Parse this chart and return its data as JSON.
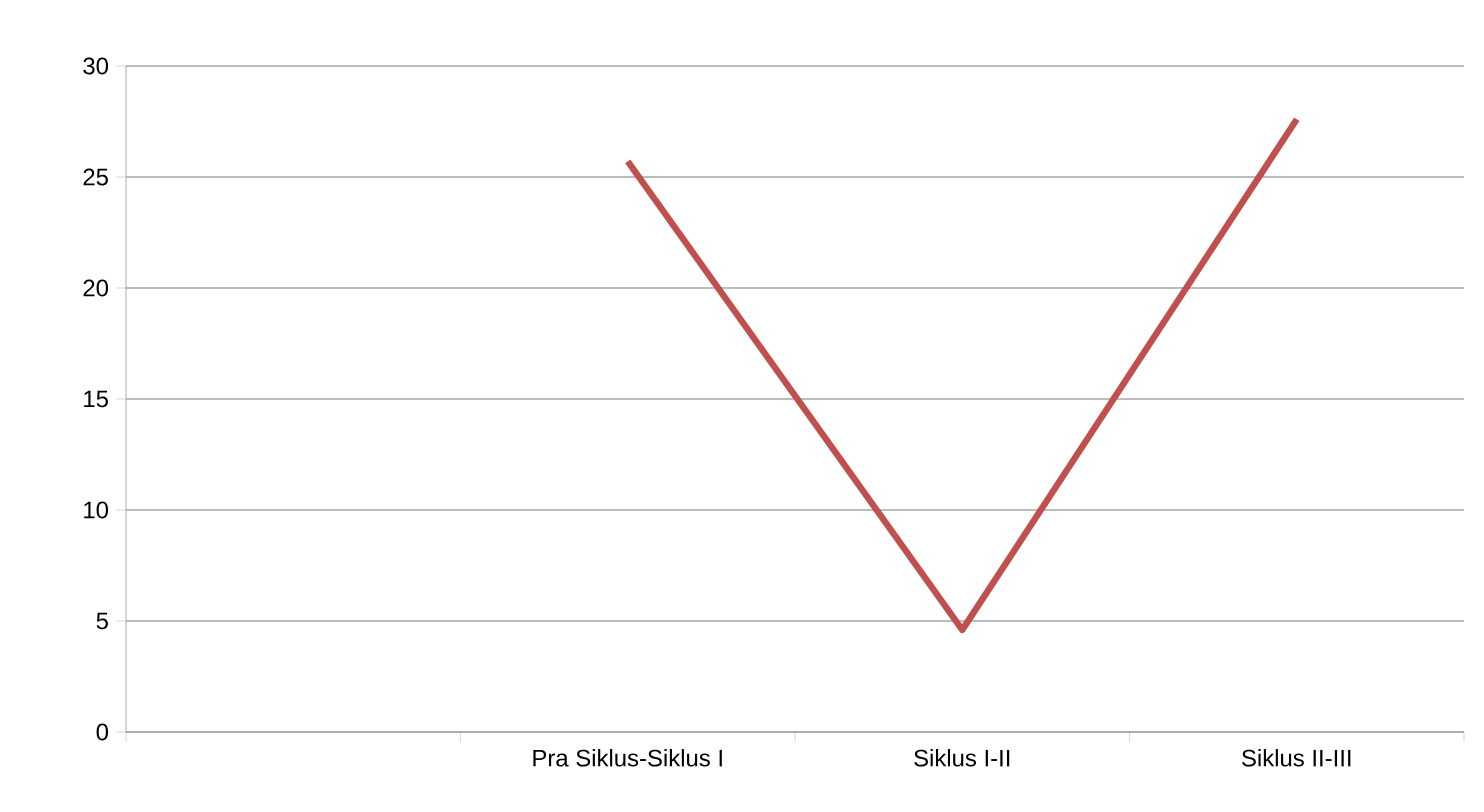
{
  "chart_data": {
    "type": "line",
    "categories": [
      null,
      "Pra Siklus-Siklus I",
      "Siklus I-II",
      "Siklus II-III"
    ],
    "series": [
      {
        "color": "#c0504d",
        "values": [
          null,
          25.7,
          4.6,
          27.6
        ]
      }
    ],
    "ylim": [
      0,
      30
    ],
    "yticks": [
      0,
      5,
      10,
      15,
      20,
      25,
      30
    ],
    "grid": "y",
    "legend": false,
    "marker": "none",
    "line_style": "solid"
  }
}
